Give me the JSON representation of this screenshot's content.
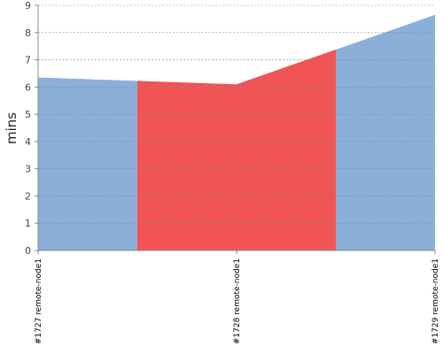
{
  "chart_data": {
    "type": "area",
    "y_label": "mins",
    "categories": [
      "#1727 remote-node1",
      "#1728 remote-node1",
      "#1729 remote-node1"
    ],
    "values": [
      6.35,
      6.1,
      8.65
    ],
    "colors": [
      "#8cafd9",
      "#f05454",
      "#8cafd9"
    ],
    "ylim": [
      0,
      9
    ],
    "yticks": [
      0,
      1,
      2,
      3,
      4,
      5,
      6,
      7,
      8,
      9
    ],
    "grid": true
  }
}
